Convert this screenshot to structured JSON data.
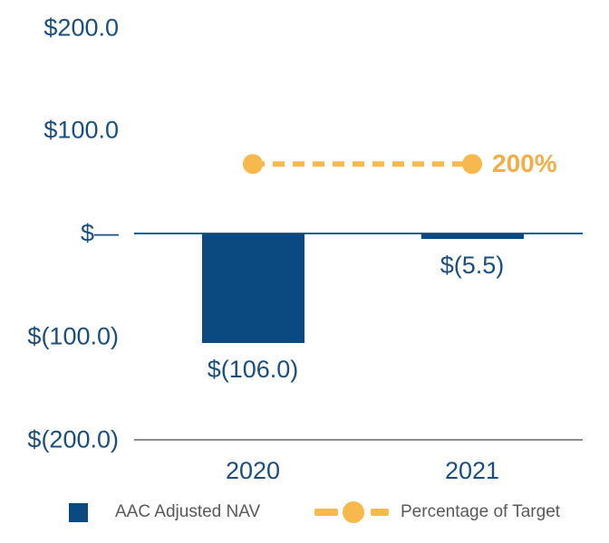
{
  "chart_data": {
    "type": "bar",
    "title": "",
    "categories": [
      "2020",
      "2021"
    ],
    "series": [
      {
        "name": "AAC Adjusted NAV",
        "type": "bar",
        "values": [
          -106.0,
          -5.5
        ],
        "data_labels": [
          "$(106.0)",
          "$(5.5)"
        ],
        "color": "#0A4A80"
      },
      {
        "name": "Percentage of Target",
        "type": "line",
        "values_percent": [
          200,
          200
        ],
        "data_label": "200%",
        "color": "#F7B94B",
        "line_style": "dashed",
        "marker": "circle"
      }
    ],
    "y_axis": {
      "ticks": [
        {
          "label": "$200.0",
          "value": 200
        },
        {
          "label": "$100.0",
          "value": 100
        },
        {
          "label": "$—",
          "value": 0
        },
        {
          "label": "$(100.0)",
          "value": -100
        },
        {
          "label": "$(200.0)",
          "value": -200
        }
      ],
      "range": [
        -200,
        200
      ]
    },
    "line_visual_value_on_primary_axis": 67.5,
    "grid": "off",
    "legend_position": "bottom"
  },
  "legend": {
    "items": [
      {
        "label": "AAC Adjusted NAV",
        "marker": "square",
        "color": "#0A4A80"
      },
      {
        "label": "Percentage of Target",
        "marker": "dashed-line-circle",
        "color": "#F7B94B"
      }
    ]
  },
  "colors": {
    "bar_blue": "#0A4A80",
    "text_blue": "#184F80",
    "accent_yellow": "#F7B94B",
    "pct_label_yellow": "#F2AE45",
    "legend_text_gray": "#58595B",
    "zero_line_blue": "#1F5E93",
    "axis_gray": "#8C8C8C",
    "background": "#FFFFFF"
  }
}
